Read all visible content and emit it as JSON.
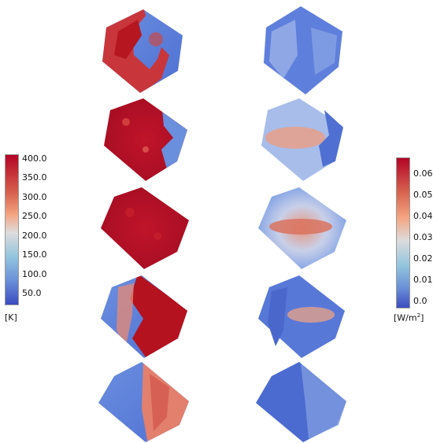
{
  "colorbars": {
    "temperature": {
      "unit": "[K]",
      "ticks": [
        "400.0",
        "350.0",
        "300.0",
        "250.0",
        "200.0",
        "150.0",
        "100.0",
        "50.0"
      ],
      "colors": [
        "#b40426",
        "#dddcdc",
        "#3b4cc0"
      ]
    },
    "flux": {
      "unit_base": "[W/m",
      "unit_sup": "2",
      "unit_close": "]",
      "ticks": [
        "0.06",
        "0.05",
        "0.04",
        "0.03",
        "0.02",
        "0.01",
        "0.0"
      ],
      "colors": [
        "#b40426",
        "#dddcdc",
        "#3b4cc0"
      ]
    }
  },
  "panels": {
    "temperature": [
      {
        "hot_side": "left-with-cold-patch",
        "hot_fraction": 0.55
      },
      {
        "hot_side": "mostly-hot",
        "hot_fraction": 0.78
      },
      {
        "hot_side": "all-hot",
        "hot_fraction": 1.0
      },
      {
        "hot_side": "right",
        "hot_fraction": 0.7
      },
      {
        "hot_side": "right-half",
        "hot_fraction": 0.45
      }
    ],
    "flux": [
      {
        "level": "low",
        "band_intensity": 0.05
      },
      {
        "level": "moderate",
        "band_intensity": 0.35
      },
      {
        "level": "high",
        "band_intensity": 0.6
      },
      {
        "level": "moderate-low",
        "band_intensity": 0.3
      },
      {
        "level": "low",
        "band_intensity": 0.08
      }
    ]
  }
}
